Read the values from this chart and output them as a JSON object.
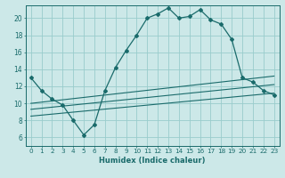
{
  "title": "",
  "xlabel": "Humidex (Indice chaleur)",
  "ylabel": "",
  "background_color": "#cce8e8",
  "line_color": "#1a6b6b",
  "grid_color": "#99cccc",
  "ylim": [
    5,
    21.5
  ],
  "xlim": [
    -0.5,
    23.5
  ],
  "yticks": [
    6,
    8,
    10,
    12,
    14,
    16,
    18,
    20
  ],
  "xticks": [
    0,
    1,
    2,
    3,
    4,
    5,
    6,
    7,
    8,
    9,
    10,
    11,
    12,
    13,
    14,
    15,
    16,
    17,
    18,
    19,
    20,
    21,
    22,
    23
  ],
  "xtick_labels": [
    "0",
    "1",
    "2",
    "3",
    "4",
    "5",
    "6",
    "7",
    "8",
    "9",
    "10",
    "11",
    "12",
    "13",
    "14",
    "15",
    "16",
    "17",
    "18",
    "19",
    "20",
    "21",
    "22",
    "23"
  ],
  "main_series": {
    "x": [
      0,
      1,
      2,
      3,
      4,
      5,
      6,
      7,
      8,
      9,
      10,
      11,
      12,
      13,
      14,
      15,
      16,
      17,
      18,
      19,
      20,
      21,
      22,
      23
    ],
    "y": [
      13.0,
      11.5,
      10.5,
      9.8,
      8.0,
      6.3,
      7.5,
      11.5,
      14.2,
      16.2,
      18.0,
      20.0,
      20.5,
      21.2,
      20.0,
      20.2,
      21.0,
      19.8,
      19.3,
      17.5,
      13.0,
      12.5,
      11.5,
      11.0
    ]
  },
  "flat_lines": [
    {
      "x": [
        0,
        23
      ],
      "y": [
        10.0,
        13.2
      ]
    },
    {
      "x": [
        0,
        23
      ],
      "y": [
        9.3,
        12.2
      ]
    },
    {
      "x": [
        0,
        23
      ],
      "y": [
        8.5,
        11.2
      ]
    }
  ]
}
